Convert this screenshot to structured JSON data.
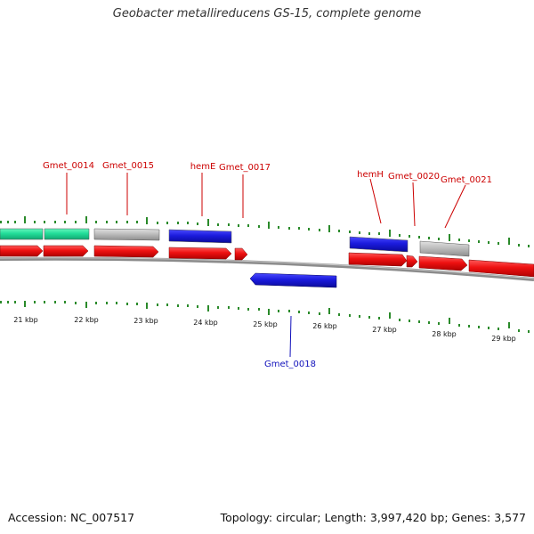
{
  "title": "Geobacter metallireducens GS-15, complete genome",
  "footer": {
    "accession": "Accession: NC_007517",
    "summary": "Topology: circular; Length: 3,997,420 bp; Genes: 3,577"
  },
  "colors": {
    "cds": "#ee1111",
    "rna": "#1b1bdd",
    "gene_gray": "#bdbdbd",
    "gene_green": "#22dd99",
    "backbone": "#8c8c8c",
    "label_red": "#cc0000",
    "label_blue": "#1111bb",
    "tick_green": "#2a8a2a"
  },
  "scale": {
    "labels": [
      "21 kbp",
      "22 kbp",
      "23 kbp",
      "24 kbp",
      "25 kbp",
      "26 kbp",
      "27 kbp",
      "28 kbp",
      "29 kbp"
    ]
  },
  "gene_labels": [
    {
      "text": "Gmet_0014",
      "color": "red"
    },
    {
      "text": "Gmet_0015",
      "color": "red"
    },
    {
      "text": "hemE",
      "color": "red"
    },
    {
      "text": "Gmet_0017",
      "color": "red"
    },
    {
      "text": "hemH",
      "color": "red"
    },
    {
      "text": "Gmet_0020",
      "color": "red"
    },
    {
      "text": "Gmet_0021",
      "color": "red"
    },
    {
      "text": "Gmet_0018",
      "color": "blue"
    }
  ]
}
